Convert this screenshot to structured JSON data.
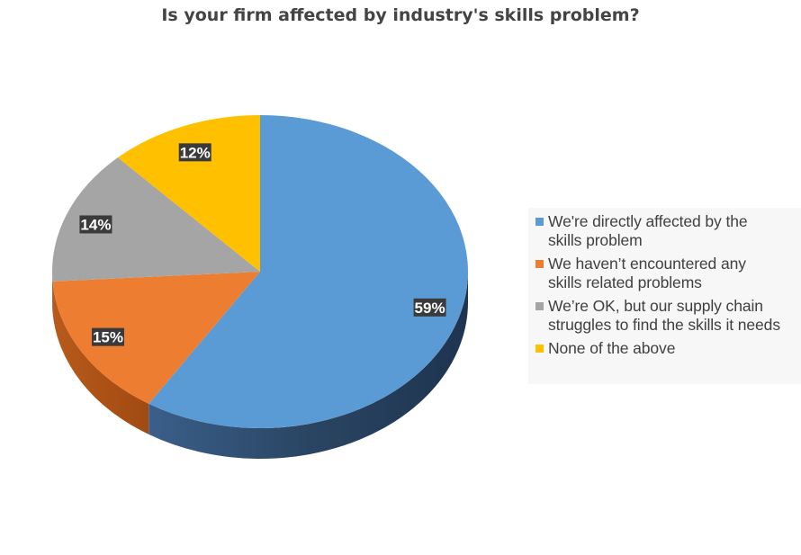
{
  "chart_data": {
    "type": "pie",
    "title": "Is your firm affected by industry's skills problem?",
    "categories": [
      "We're directly affected by the skills problem",
      "We haven’t encountered any skills related problems",
      "We’re OK, but our supply chain struggles to find the skills it needs",
      "None of the above"
    ],
    "values": [
      59,
      15,
      14,
      12
    ],
    "data_labels": [
      "59%",
      "15%",
      "14%",
      "12%"
    ],
    "colors": [
      "#5b9bd5",
      "#ed7d31",
      "#a5a5a5",
      "#ffc000"
    ],
    "style": "3d",
    "legend_position": "right"
  },
  "legend": {
    "items": [
      {
        "line1": "We're directly affected by the",
        "line2": "skills problem",
        "color": "#5b9bd5"
      },
      {
        "line1": "We haven’t encountered any",
        "line2": "skills related problems",
        "color": "#ed7d31"
      },
      {
        "line1": "We’re OK, but our supply chain",
        "line2": "struggles to find the skills it needs",
        "color": "#a5a5a5"
      },
      {
        "line1": "None of the above",
        "line2": "",
        "color": "#ffc000"
      }
    ]
  }
}
